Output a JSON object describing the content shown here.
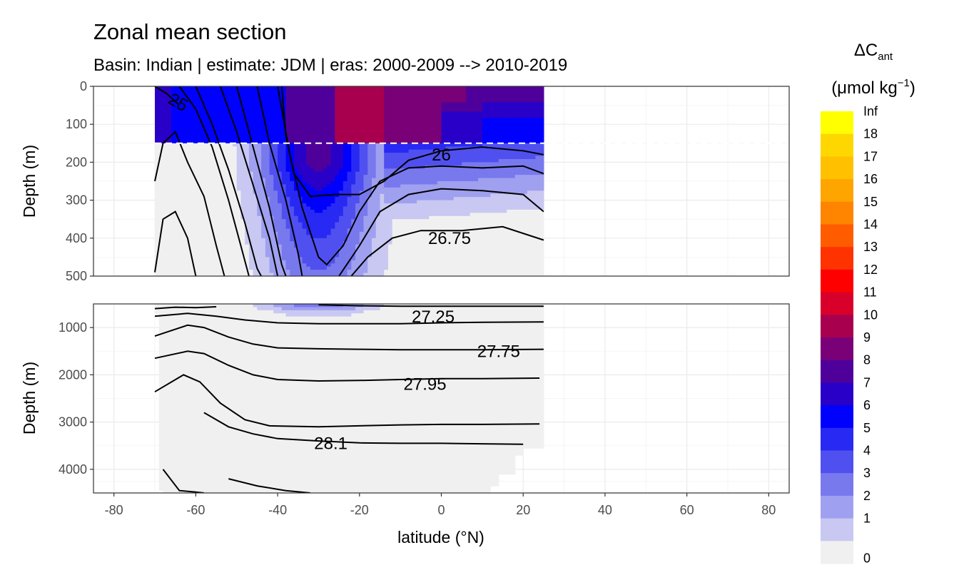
{
  "chart_data": {
    "type": "heatmap",
    "title": "Zonal mean section",
    "subtitle": "Basin: Indian | estimate: JDM  | eras: 2000-2009 --> 2010-2019",
    "xlabel": "latitude (°N)",
    "ylabel_top": "Depth (m)",
    "ylabel_bottom": "Depth (m)",
    "xlim": [
      -85,
      85
    ],
    "x_ticks": [
      "-80",
      "-60",
      "-40",
      "-20",
      "0",
      "20",
      "40",
      "60",
      "80"
    ],
    "x_tick_values": [
      -80,
      -60,
      -40,
      -20,
      0,
      20,
      40,
      60,
      80
    ],
    "upper_panel": {
      "ylim": [
        0,
        500
      ],
      "y_ticks": [
        "0",
        "100",
        "200",
        "300",
        "400",
        "500"
      ],
      "y_tick_values": [
        0,
        100,
        200,
        300,
        400,
        500
      ]
    },
    "lower_panel": {
      "ylim": [
        500,
        4500
      ],
      "y_ticks": [
        "1000",
        "2000",
        "3000",
        "4000"
      ],
      "y_tick_values": [
        1000,
        2000,
        3000,
        4000
      ]
    },
    "data_lat_range": [
      -70,
      25
    ],
    "mixed_layer_line_depth": 150,
    "legend": {
      "title": "ΔC",
      "title_sub": "ant",
      "unit": "(μmol kg",
      "unit_sup": "−1",
      "unit_close": ")",
      "position": "right",
      "labels": [
        "Inf",
        "18",
        "17",
        "16",
        "15",
        "14",
        "13",
        "12",
        "11",
        "10",
        "9",
        "8",
        "7",
        "6",
        "5",
        "4",
        "3",
        "2",
        "1",
        "0"
      ],
      "colors": [
        "#ffff00",
        "#ffd700",
        "#ffc000",
        "#ffa500",
        "#ff8500",
        "#ff5c00",
        "#ff3300",
        "#ff0000",
        "#d8002a",
        "#a8004f",
        "#7a0078",
        "#50009a",
        "#2800c8",
        "#0000ff",
        "#2929f4",
        "#5050f0",
        "#7979ee",
        "#a0a0f0",
        "#c8c8f2",
        "#f0f0f0"
      ]
    },
    "isopycnal_labels": [
      {
        "text": "25",
        "lat": -65,
        "depth": 40
      },
      {
        "text": "26",
        "lat": 0,
        "depth": 180
      },
      {
        "text": "26.75",
        "lat": 2,
        "depth": 400
      },
      {
        "text": "27.25",
        "lat": -2,
        "depth": 770
      },
      {
        "text": "27.75",
        "lat": 14,
        "depth": 1500
      },
      {
        "text": "27.95",
        "lat": -4,
        "depth": 2200
      },
      {
        "text": "28.1",
        "lat": -27,
        "depth": 3450
      }
    ],
    "isopycnals_upper": [
      [
        [
          -70,
          0
        ],
        [
          -67,
          20
        ],
        [
          -64,
          50
        ]
      ],
      [
        [
          -64,
          0
        ],
        [
          -60,
          60
        ],
        [
          -56,
          160
        ],
        [
          -52,
          300
        ],
        [
          -49,
          420
        ],
        [
          -47,
          500
        ]
      ],
      [
        [
          -60,
          0
        ],
        [
          -56,
          100
        ],
        [
          -52,
          220
        ],
        [
          -48,
          360
        ],
        [
          -45,
          480
        ],
        [
          -44,
          500
        ]
      ],
      [
        [
          -54,
          0
        ],
        [
          -50,
          120
        ],
        [
          -46,
          260
        ],
        [
          -42,
          400
        ],
        [
          -40,
          500
        ]
      ],
      [
        [
          -50,
          0
        ],
        [
          -46,
          160
        ],
        [
          -42,
          320
        ],
        [
          -39,
          470
        ],
        [
          -38,
          500
        ]
      ],
      [
        [
          -45,
          0
        ],
        [
          -42,
          150
        ],
        [
          -38,
          300
        ],
        [
          -35,
          440
        ],
        [
          -34,
          500
        ]
      ],
      [
        [
          -39,
          0
        ],
        [
          -38,
          130
        ],
        [
          -36,
          230
        ],
        [
          -32,
          290
        ],
        [
          -26,
          285
        ],
        [
          -20,
          285
        ],
        [
          -14,
          250
        ],
        [
          -8,
          195
        ],
        [
          0,
          170
        ],
        [
          10,
          160
        ],
        [
          20,
          170
        ],
        [
          25,
          180
        ]
      ],
      [
        [
          -40,
          0
        ],
        [
          -37,
          180
        ],
        [
          -34,
          320
        ],
        [
          -30,
          450
        ],
        [
          -28,
          470
        ],
        [
          -24,
          420
        ],
        [
          -20,
          330
        ],
        [
          -15,
          250
        ],
        [
          -8,
          215
        ],
        [
          0,
          210
        ],
        [
          10,
          215
        ],
        [
          20,
          210
        ],
        [
          25,
          230
        ]
      ],
      [
        [
          -70,
          250
        ],
        [
          -68,
          150
        ],
        [
          -65,
          120
        ],
        [
          -62,
          200
        ],
        [
          -58,
          290
        ],
        [
          -55,
          420
        ],
        [
          -53,
          500
        ]
      ],
      [
        [
          -70,
          490
        ],
        [
          -68,
          350
        ],
        [
          -65,
          330
        ],
        [
          -62,
          400
        ],
        [
          -60,
          500
        ]
      ],
      [
        [
          -25,
          500
        ],
        [
          -20,
          420
        ],
        [
          -15,
          330
        ],
        [
          -8,
          285
        ],
        [
          0,
          270
        ],
        [
          10,
          275
        ],
        [
          20,
          285
        ],
        [
          25,
          330
        ]
      ],
      [
        [
          -22,
          500
        ],
        [
          -18,
          450
        ],
        [
          -12,
          400
        ],
        [
          -5,
          380
        ],
        [
          5,
          380
        ],
        [
          15,
          370
        ],
        [
          25,
          405
        ]
      ]
    ],
    "isopycnals_lower": [
      [
        [
          -70,
          600
        ],
        [
          -65,
          570
        ],
        [
          -60,
          580
        ],
        [
          -55,
          560
        ]
      ],
      [
        [
          -30,
          520
        ],
        [
          -20,
          540
        ],
        [
          -10,
          550
        ],
        [
          0,
          550
        ],
        [
          10,
          550
        ],
        [
          25,
          550
        ]
      ],
      [
        [
          -70,
          760
        ],
        [
          -62,
          700
        ],
        [
          -55,
          760
        ],
        [
          -48,
          840
        ],
        [
          -40,
          900
        ],
        [
          -30,
          920
        ],
        [
          -20,
          920
        ],
        [
          -10,
          920
        ],
        [
          0,
          900
        ],
        [
          10,
          890
        ],
        [
          25,
          880
        ]
      ],
      [
        [
          -70,
          1180
        ],
        [
          -62,
          950
        ],
        [
          -58,
          1000
        ],
        [
          -52,
          1200
        ],
        [
          -46,
          1350
        ],
        [
          -40,
          1430
        ],
        [
          -30,
          1450
        ],
        [
          -20,
          1460
        ],
        [
          -10,
          1470
        ],
        [
          0,
          1470
        ],
        [
          10,
          1470
        ],
        [
          25,
          1460
        ]
      ],
      [
        [
          -70,
          1650
        ],
        [
          -62,
          1500
        ],
        [
          -58,
          1550
        ],
        [
          -52,
          1800
        ],
        [
          -46,
          2000
        ],
        [
          -40,
          2100
        ],
        [
          -30,
          2130
        ],
        [
          -20,
          2120
        ],
        [
          -10,
          2100
        ],
        [
          0,
          2080
        ],
        [
          10,
          2080
        ],
        [
          24,
          2070
        ]
      ],
      [
        [
          -70,
          2360
        ],
        [
          -63,
          2000
        ],
        [
          -59,
          2150
        ],
        [
          -54,
          2600
        ],
        [
          -48,
          2950
        ],
        [
          -42,
          3080
        ],
        [
          -30,
          3100
        ],
        [
          -20,
          3080
        ],
        [
          -10,
          3060
        ],
        [
          0,
          3050
        ],
        [
          10,
          3050
        ],
        [
          24,
          3040
        ]
      ],
      [
        [
          -58,
          2800
        ],
        [
          -52,
          3100
        ],
        [
          -46,
          3250
        ],
        [
          -40,
          3350
        ],
        [
          -30,
          3400
        ],
        [
          -20,
          3440
        ],
        [
          -10,
          3450
        ],
        [
          0,
          3450
        ],
        [
          10,
          3460
        ],
        [
          20,
          3470
        ]
      ],
      [
        [
          -68,
          4000
        ],
        [
          -64,
          4450
        ],
        [
          -60,
          4480
        ],
        [
          -58,
          4500
        ]
      ],
      [
        [
          -52,
          4200
        ],
        [
          -45,
          4350
        ],
        [
          -38,
          4450
        ],
        [
          -32,
          4500
        ]
      ]
    ]
  }
}
